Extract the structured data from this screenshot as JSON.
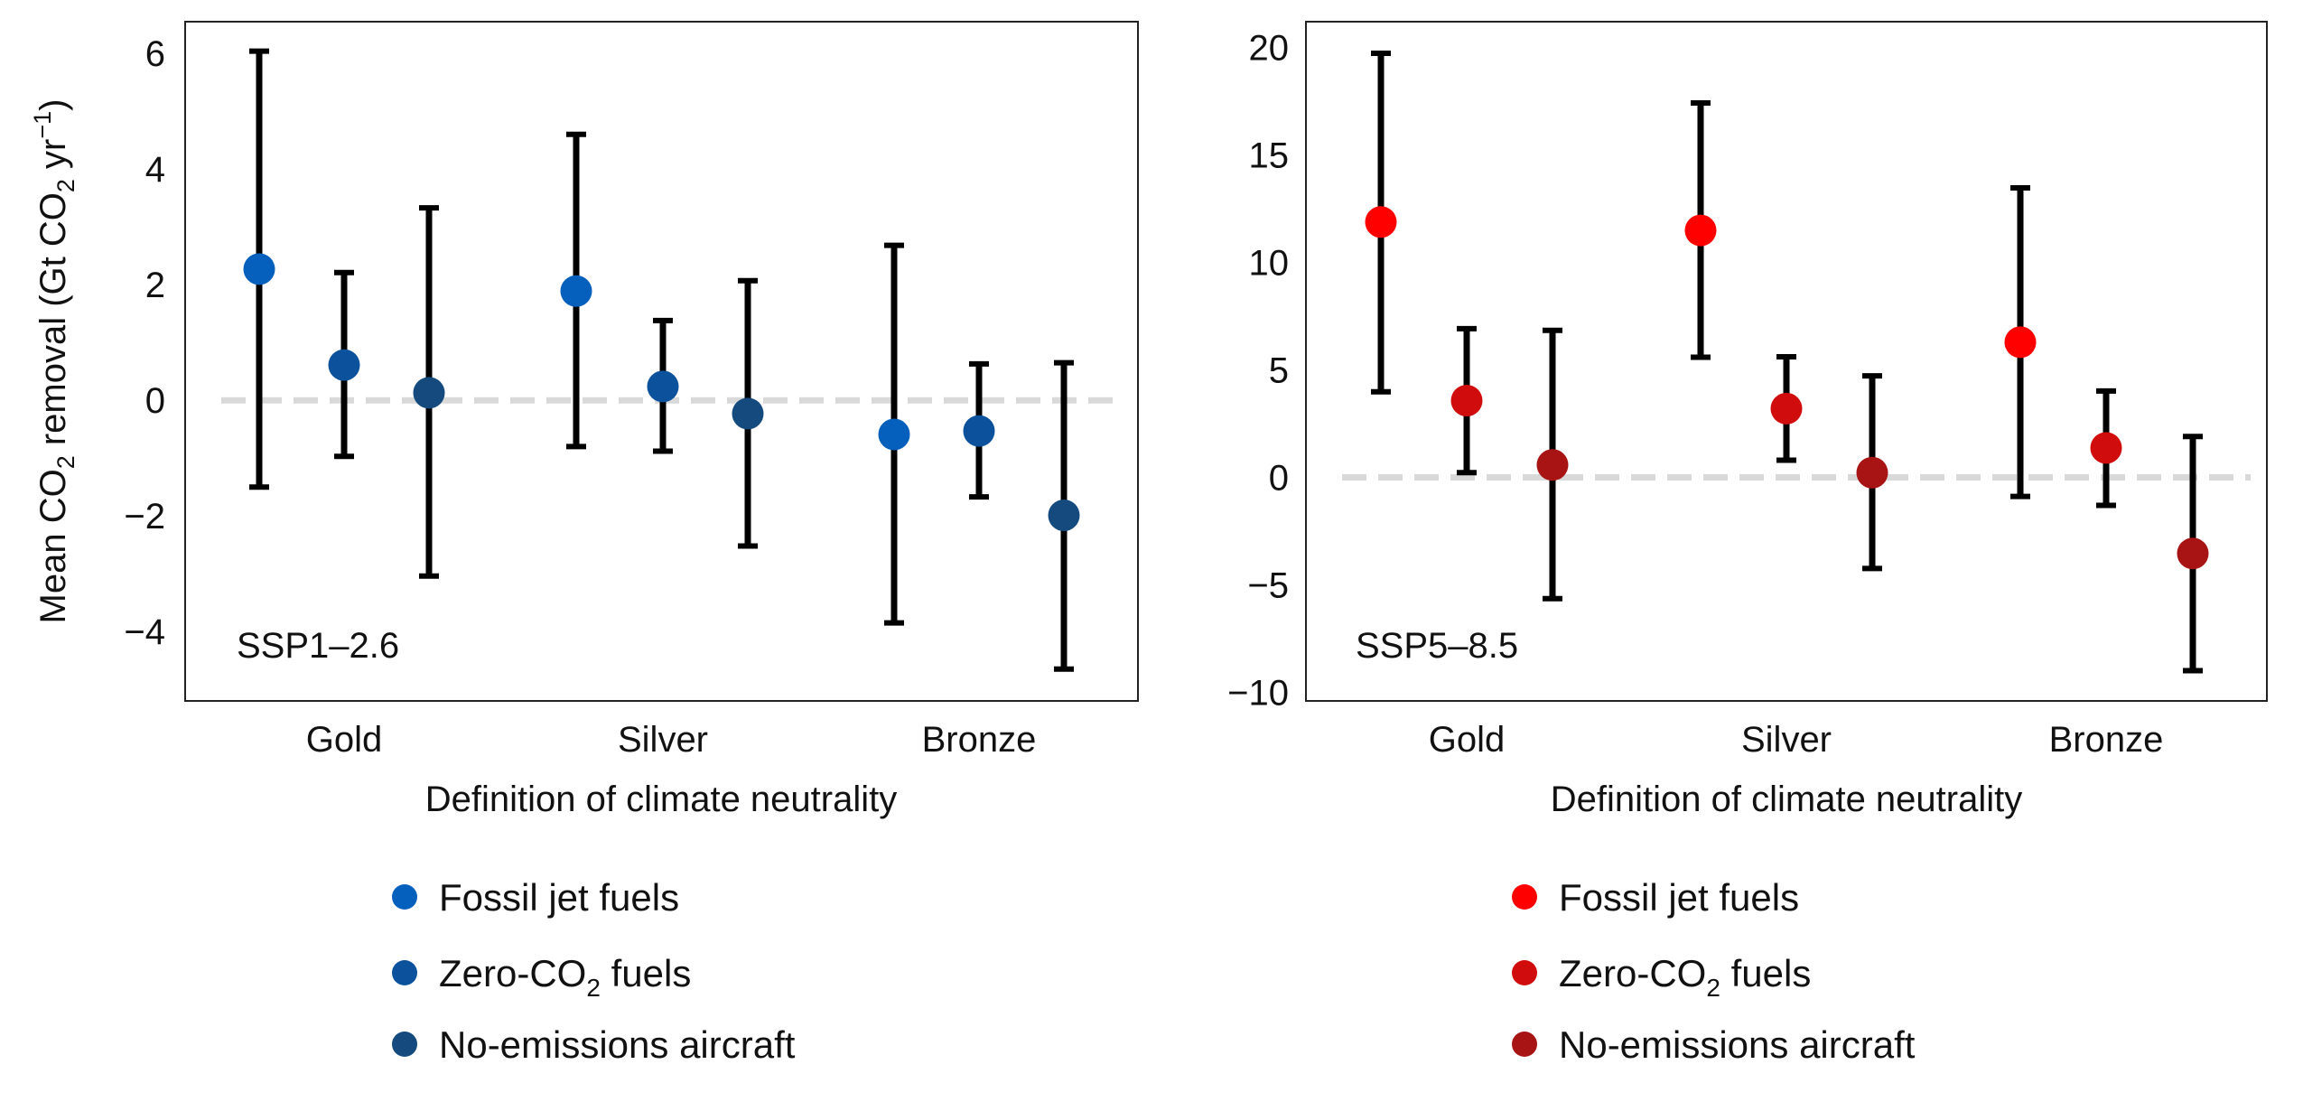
{
  "chart_data": [
    {
      "type": "scatter",
      "panel_label": "SSP1–2.6",
      "ylabel": {
        "prefix": "Mean CO",
        "sub": "2",
        "mid": " removal (Gt CO",
        "sub2": "2",
        "mid2": " yr",
        "sup": "−1",
        "suffix": ")"
      },
      "xlabel": "Definition of climate neutrality",
      "categories": [
        "Gold",
        "Silver",
        "Bronze"
      ],
      "ylim": [
        -5.2,
        6.55
      ],
      "yticks": [
        6,
        4,
        2,
        0,
        -2,
        -4
      ],
      "ytick_labels": [
        "6",
        "4",
        "2",
        "0",
        "−2",
        "−4"
      ],
      "reference_line": 0,
      "grid": false,
      "legend_position": "bottom",
      "series": [
        {
          "name": "Fossil jet fuels",
          "color": "#0560bd",
          "mean": [
            2.27,
            1.89,
            -0.59
          ],
          "upper": [
            6.04,
            4.6,
            2.68
          ],
          "lower": [
            -1.5,
            -0.8,
            -3.85
          ]
        },
        {
          "name": "Zero-CO2 fuels",
          "legend": {
            "main": "Zero-CO",
            "sub": "2",
            "rest": " fuels"
          },
          "color": "#0b519c",
          "mean": [
            0.61,
            0.24,
            -0.53
          ],
          "upper": [
            2.21,
            1.38,
            0.63
          ],
          "lower": [
            -0.97,
            -0.88,
            -1.67
          ]
        },
        {
          "name": "No-emissions aircraft",
          "color": "#144a7e",
          "mean": [
            0.13,
            -0.23,
            -1.99
          ],
          "upper": [
            3.33,
            2.07,
            0.65
          ],
          "lower": [
            -3.04,
            -2.52,
            -4.65
          ]
        }
      ]
    },
    {
      "type": "scatter",
      "panel_label": "SSP5–8.5",
      "xlabel": "Definition of climate neutrality",
      "categories": [
        "Gold",
        "Silver",
        "Bronze"
      ],
      "ylim": [
        -10.4,
        21.2
      ],
      "yticks": [
        20,
        15,
        10,
        5,
        0,
        -5,
        -10
      ],
      "ytick_labels": [
        "20",
        "15",
        "10",
        "5",
        "0",
        "−5",
        "−10"
      ],
      "reference_line": 0,
      "grid": false,
      "legend_position": "bottom",
      "series": [
        {
          "name": "Fossil jet fuels",
          "color": "#ff0000",
          "mean": [
            11.88,
            11.49,
            6.29
          ],
          "upper": [
            19.73,
            17.42,
            13.47
          ],
          "lower": [
            3.98,
            5.59,
            -0.89
          ]
        },
        {
          "name": "Zero-CO2 fuels",
          "legend": {
            "main": "Zero-CO",
            "sub": "2",
            "rest": " fuels"
          },
          "color": "#d10c0c",
          "mean": [
            3.57,
            3.2,
            1.37
          ],
          "upper": [
            6.92,
            5.61,
            4.02
          ],
          "lower": [
            0.22,
            0.8,
            -1.3
          ]
        },
        {
          "name": "No-emissions aircraft",
          "color": "#a81414",
          "mean": [
            0.58,
            0.22,
            -3.54
          ],
          "upper": [
            6.84,
            4.72,
            1.9
          ],
          "lower": [
            -5.64,
            -4.24,
            -8.99
          ]
        }
      ]
    }
  ]
}
